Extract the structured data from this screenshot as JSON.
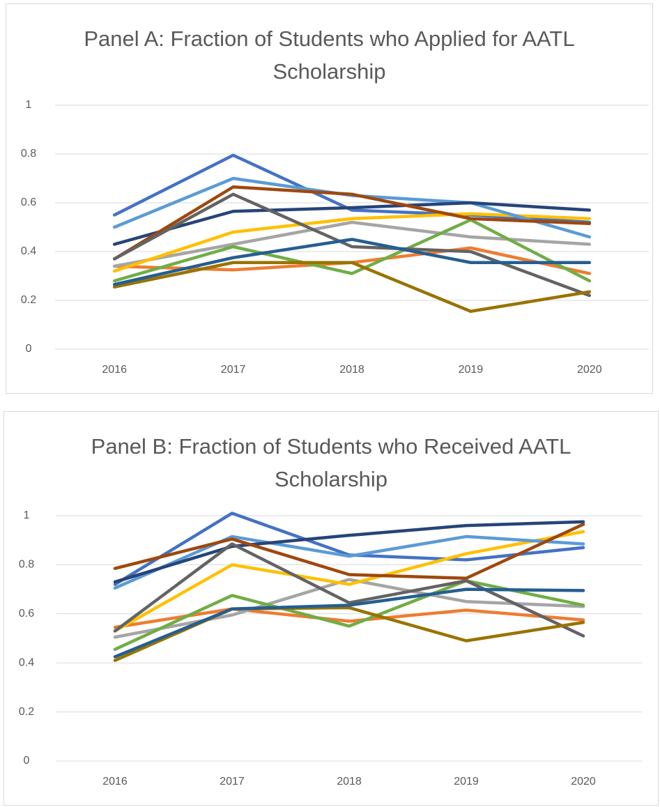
{
  "chart_data": [
    {
      "type": "line",
      "title": "Panel A: Fraction of Students who Applied for AATL Scholarship",
      "categories": [
        "2016",
        "2017",
        "2018",
        "2019",
        "2020"
      ],
      "ylim": [
        0,
        1
      ],
      "yticks": [
        0,
        0.2,
        0.4,
        0.6,
        0.8,
        1
      ],
      "grid": true,
      "series": [
        {
          "color": "#4472c4",
          "values": [
            0.55,
            0.795,
            0.57,
            0.55,
            0.52
          ]
        },
        {
          "color": "#ed7d31",
          "values": [
            0.34,
            0.325,
            0.355,
            0.415,
            0.31
          ]
        },
        {
          "color": "#a5a5a5",
          "values": [
            0.34,
            0.43,
            0.52,
            0.46,
            0.43
          ]
        },
        {
          "color": "#ffc000",
          "values": [
            0.32,
            0.48,
            0.535,
            0.555,
            0.535
          ]
        },
        {
          "color": "#5b9bd5",
          "values": [
            0.5,
            0.7,
            0.63,
            0.6,
            0.46
          ]
        },
        {
          "color": "#70ad47",
          "values": [
            0.28,
            0.42,
            0.31,
            0.53,
            0.28
          ]
        },
        {
          "color": "#264478",
          "values": [
            0.43,
            0.565,
            0.58,
            0.6,
            0.57
          ]
        },
        {
          "color": "#9e480e",
          "values": [
            0.37,
            0.665,
            0.635,
            0.535,
            0.515
          ]
        },
        {
          "color": "#636363",
          "values": [
            0.37,
            0.635,
            0.42,
            0.4,
            0.22
          ]
        },
        {
          "color": "#997300",
          "values": [
            0.255,
            0.355,
            0.355,
            0.155,
            0.235
          ]
        },
        {
          "color": "#255e91",
          "values": [
            0.265,
            0.375,
            0.45,
            0.355,
            0.355
          ]
        }
      ]
    },
    {
      "type": "line",
      "title": "Panel B: Fraction of Students who Received AATL Scholarship",
      "categories": [
        "2016",
        "2017",
        "2018",
        "2019",
        "2020"
      ],
      "ylim": [
        0,
        1
      ],
      "yticks": [
        0,
        0.2,
        0.4,
        0.6,
        0.8,
        1
      ],
      "grid": true,
      "series": [
        {
          "color": "#4472c4",
          "values": [
            0.72,
            1.01,
            0.84,
            0.82,
            0.87
          ]
        },
        {
          "color": "#ed7d31",
          "values": [
            0.545,
            0.62,
            0.57,
            0.615,
            0.575
          ]
        },
        {
          "color": "#a5a5a5",
          "values": [
            0.505,
            0.595,
            0.74,
            0.65,
            0.63
          ]
        },
        {
          "color": "#ffc000",
          "values": [
            0.53,
            0.8,
            0.72,
            0.845,
            0.935
          ]
        },
        {
          "color": "#5b9bd5",
          "values": [
            0.705,
            0.915,
            0.835,
            0.915,
            0.885
          ]
        },
        {
          "color": "#70ad47",
          "values": [
            0.455,
            0.675,
            0.55,
            0.735,
            0.635
          ]
        },
        {
          "color": "#264478",
          "values": [
            0.73,
            0.875,
            0.92,
            0.96,
            0.975
          ]
        },
        {
          "color": "#9e480e",
          "values": [
            0.785,
            0.905,
            0.76,
            0.745,
            0.965
          ]
        },
        {
          "color": "#636363",
          "values": [
            0.53,
            0.885,
            0.645,
            0.735,
            0.51
          ]
        },
        {
          "color": "#997300",
          "values": [
            0.41,
            0.62,
            0.625,
            0.49,
            0.565
          ]
        },
        {
          "color": "#255e91",
          "values": [
            0.425,
            0.62,
            0.635,
            0.7,
            0.695
          ]
        }
      ]
    }
  ]
}
